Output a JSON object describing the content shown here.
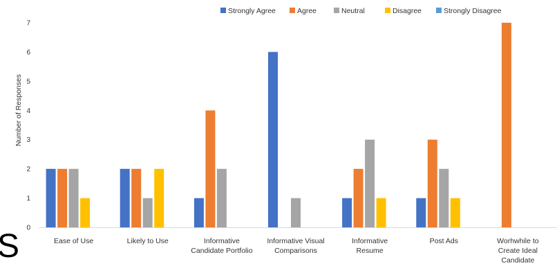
{
  "chart_data": {
    "type": "bar",
    "title": "",
    "xlabel": "",
    "ylabel": "Number of Responses",
    "ylim": [
      0,
      7
    ],
    "yticks": [
      0,
      1,
      2,
      3,
      4,
      5,
      6,
      7
    ],
    "grid": false,
    "legend_position": "top",
    "categories": [
      [
        "Ease of Use"
      ],
      [
        "Likely to Use"
      ],
      [
        "Informative",
        "Candidate Portfolio"
      ],
      [
        "Informative Visual",
        "Comparisons"
      ],
      [
        "Informative",
        "Resume"
      ],
      [
        "Post Ads"
      ],
      [
        "Worhwhile to",
        "Create Ideal",
        "Candidate"
      ]
    ],
    "series": [
      {
        "name": "Strongly Agree",
        "color": "#4472C4",
        "values": [
          2,
          2,
          1,
          6,
          1,
          1,
          0
        ]
      },
      {
        "name": "Agree",
        "color": "#ED7D31",
        "values": [
          2,
          2,
          4,
          0,
          2,
          3,
          7
        ]
      },
      {
        "name": "Neutral",
        "color": "#A5A5A5",
        "values": [
          2,
          1,
          2,
          1,
          3,
          2,
          0
        ]
      },
      {
        "name": "Disagree",
        "color": "#FFC000",
        "values": [
          1,
          2,
          0,
          0,
          1,
          1,
          0
        ]
      },
      {
        "name": "Strongly Disagree",
        "color": "#5B9BD5",
        "values": [
          0,
          0,
          0,
          0,
          0,
          0,
          0
        ]
      }
    ]
  },
  "stray_text": "S"
}
